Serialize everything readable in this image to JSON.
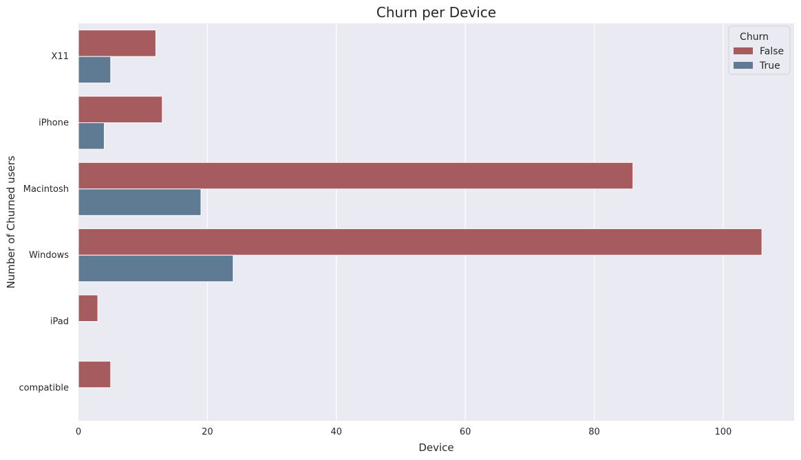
{
  "chart_data": {
    "type": "bar",
    "orientation": "horizontal",
    "title": "Churn per Device",
    "xlabel": "Device",
    "ylabel": "Number of Churned users",
    "xlim": [
      0,
      111
    ],
    "xticks": [
      0,
      20,
      40,
      60,
      80,
      100
    ],
    "categories": [
      "X11",
      "iPhone",
      "Macintosh",
      "Windows",
      "iPad",
      "compatible"
    ],
    "series": [
      {
        "name": "False",
        "color": "#a65b5e",
        "values": [
          12,
          13,
          86,
          106,
          3,
          5
        ]
      },
      {
        "name": "True",
        "color": "#5f7a93",
        "values": [
          5,
          4,
          19,
          24,
          null,
          null
        ]
      }
    ],
    "legend": {
      "title": "Churn",
      "placement": "top-right"
    },
    "grid": true,
    "background": "#eaeaf2"
  }
}
